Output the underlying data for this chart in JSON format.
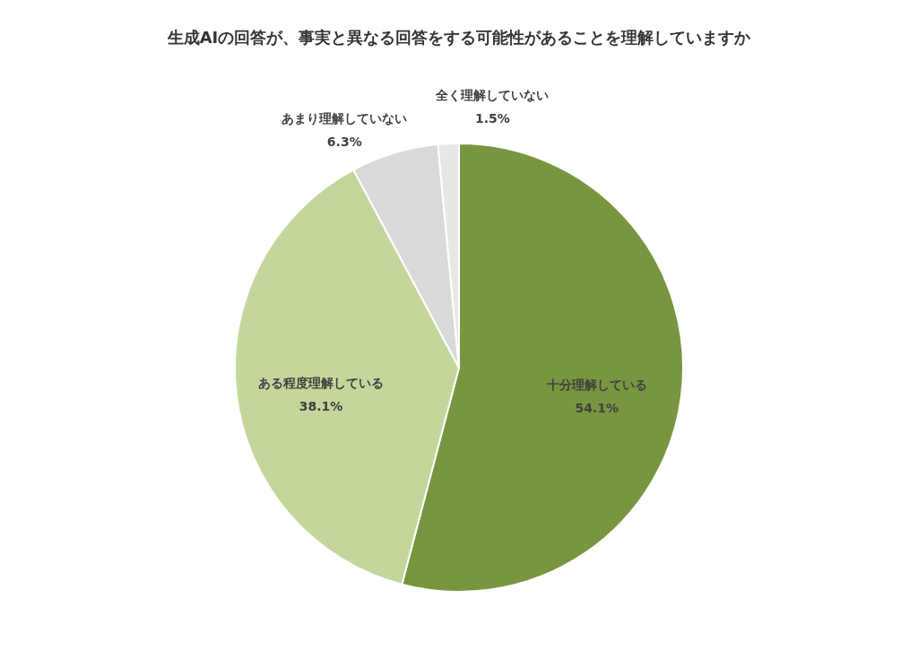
{
  "chart_data": {
    "type": "pie",
    "title": "生成AIの回答が、事実と異なる回答をする可能性があることを理解していますか",
    "categories": [
      "十分理解している",
      "ある程度理解している",
      "あまり理解していない",
      "全く理解していない"
    ],
    "values": [
      54.1,
      38.1,
      6.3,
      1.5
    ],
    "colors": [
      "#78953f",
      "#c4d69c",
      "#d9d9d9",
      "#e7e7e7"
    ],
    "value_labels": [
      "54.1%",
      "38.1%",
      "6.3%",
      "1.5%"
    ],
    "legend": false
  }
}
